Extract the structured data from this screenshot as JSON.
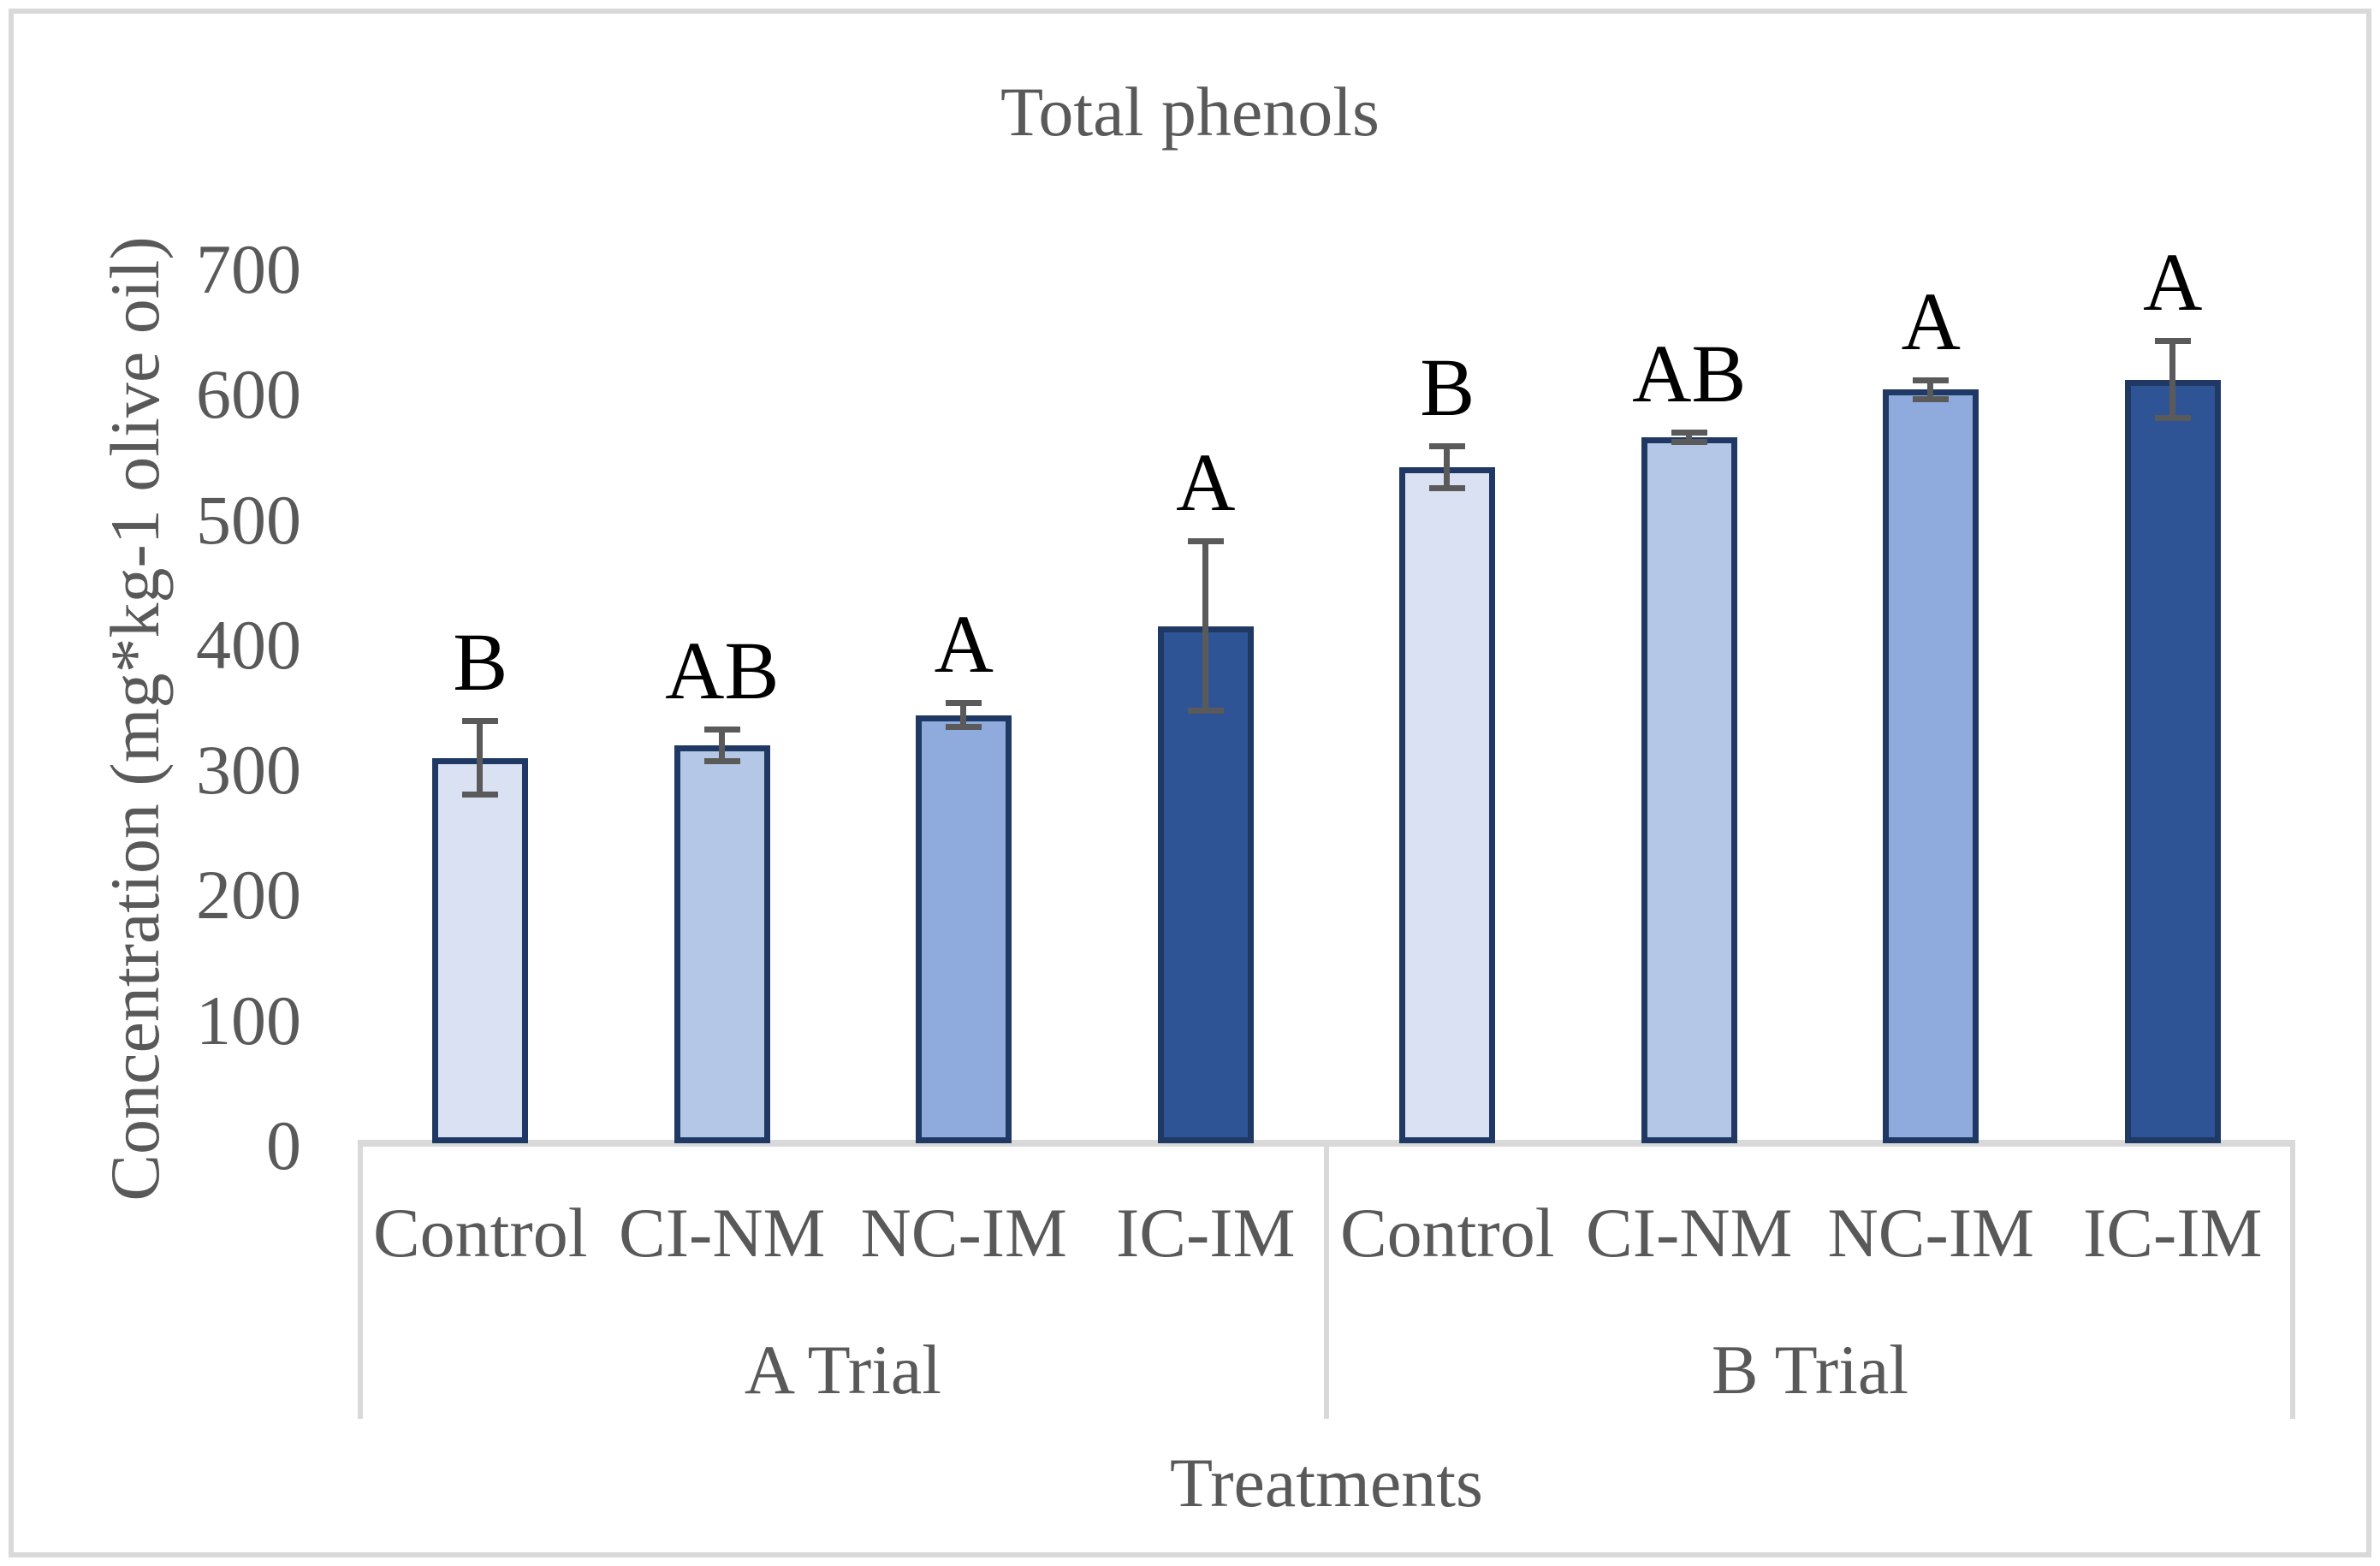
{
  "title": "Total phenols",
  "y_axis": {
    "label": "Concentration (mg*kg-1 olive oil)",
    "ticks": [
      700,
      600,
      500,
      400,
      300,
      200,
      100,
      0
    ],
    "min": 0,
    "max": 700
  },
  "x_axis": {
    "label": "Treatments",
    "groups": [
      {
        "label": "A Trial",
        "categories": [
          "Control",
          "CI-NM",
          "NC-IM",
          "IC-IM"
        ]
      },
      {
        "label": "B Trial",
        "categories": [
          "Control",
          "CI-NM",
          "NC-IM",
          "IC-IM"
        ]
      }
    ]
  },
  "chart_data": {
    "type": "bar",
    "title": "Total phenols",
    "xlabel": "Treatments",
    "ylabel": "Concentration (mg*kg-1 olive oil)",
    "ylim": [
      0,
      700
    ],
    "y_tick_step": 100,
    "grid": false,
    "legend": false,
    "categories": [
      "Control",
      "CI-NM",
      "NC-IM",
      "IC-IM"
    ],
    "groups": [
      "A Trial",
      "B Trial"
    ],
    "series": [
      {
        "group": "A Trial",
        "values": [
          310,
          320,
          344,
          415
        ],
        "errors": [
          30,
          13,
          10,
          68
        ],
        "sig_letters": [
          "B",
          "AB",
          "A",
          "A"
        ]
      },
      {
        "group": "B Trial",
        "values": [
          542,
          566,
          604,
          612
        ],
        "errors": [
          17,
          4,
          8,
          31
        ],
        "sig_letters": [
          "B",
          "AB",
          "A",
          "A"
        ]
      }
    ],
    "colors": {
      "bar_fill_palette": [
        "#D9E1F2",
        "#B4C7E7",
        "#8FAADC",
        "#2F5496"
      ],
      "bar_border": "#1F3864",
      "error_bar": "#5A5A5A",
      "axis_text": "#595959",
      "sig_letter": "#000000",
      "frame_and_table_lines": "#D9D9D9"
    }
  }
}
